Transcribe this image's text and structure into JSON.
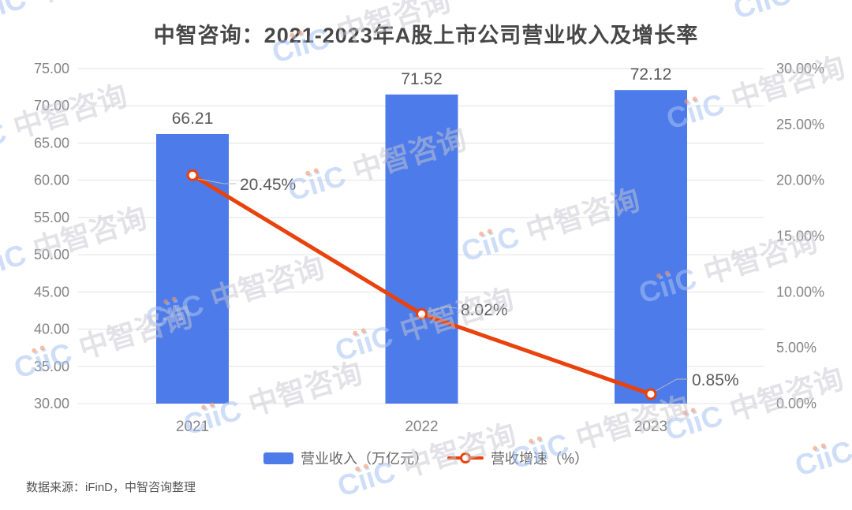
{
  "title": "中智咨询：2021-2023年A股上市公司营业收入及增长率",
  "source_note": "数据来源：iFinD，中智咨询整理",
  "watermark": {
    "logo": "CiiC",
    "brand": "中智咨询"
  },
  "colors": {
    "bar": "#4D7BE9",
    "line": "#E9420D",
    "grid": "#E2E2E2",
    "axis_text": "#848484",
    "data_label": "#595959",
    "title_text": "#474747",
    "leader": "#BBBBBB"
  },
  "chart_data": {
    "type": "bar+line combo",
    "title": "中智咨询：2021-2023年A股上市公司营业收入及增长率",
    "categories": [
      "2021",
      "2022",
      "2023"
    ],
    "series": [
      {
        "name": "营业收入（万亿元）",
        "type": "bar",
        "axis": "left",
        "values": [
          66.21,
          71.52,
          72.12
        ],
        "labels": [
          "66.21",
          "71.52",
          "72.12"
        ]
      },
      {
        "name": "营收增速（%）",
        "type": "line",
        "axis": "right",
        "values": [
          20.45,
          8.02,
          0.85
        ],
        "labels": [
          "20.45%",
          "8.02%",
          "0.85%"
        ]
      }
    ],
    "left_axis": {
      "min": 30,
      "max": 75,
      "step": 5,
      "tick_labels": [
        "75.00",
        "70.00",
        "65.00",
        "60.00",
        "55.00",
        "50.00",
        "45.00",
        "40.00",
        "35.00",
        "30.00"
      ]
    },
    "right_axis": {
      "min": 0,
      "max": 30,
      "step": 5,
      "tick_labels": [
        "30.00%",
        "25.00%",
        "20.00%",
        "15.00%",
        "10.00%",
        "5.00%",
        "0.00%"
      ]
    },
    "grid": true,
    "legend_position": "bottom"
  }
}
